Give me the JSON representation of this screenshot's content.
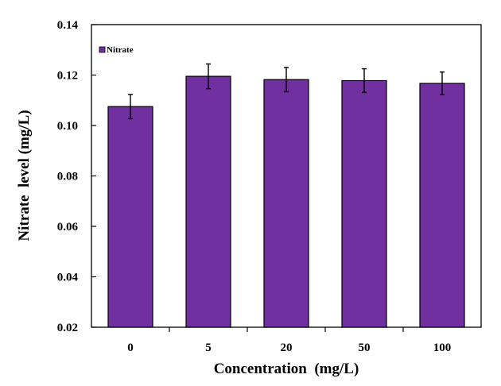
{
  "chart_data": {
    "type": "bar",
    "categories": [
      "0",
      "5",
      "20",
      "50",
      "100"
    ],
    "series": [
      {
        "name": "Nitrate",
        "values": [
          0.1075,
          0.1195,
          0.1182,
          0.1178,
          0.1167
        ],
        "errors": [
          0.0048,
          0.0049,
          0.0048,
          0.0047,
          0.0045
        ]
      }
    ],
    "title": "",
    "xlabel": "Concentration  (mg/L)",
    "ylabel": "Nitrate  level (mg/L)",
    "ylim": [
      0.02,
      0.14
    ],
    "yticks": [
      "0.02",
      "0.04",
      "0.06",
      "0.08",
      "0.10",
      "0.12",
      "0.14"
    ],
    "grid": false,
    "legend_position": "top-left",
    "colors": {
      "bar": "#7030a0",
      "axis": "#000000"
    }
  }
}
